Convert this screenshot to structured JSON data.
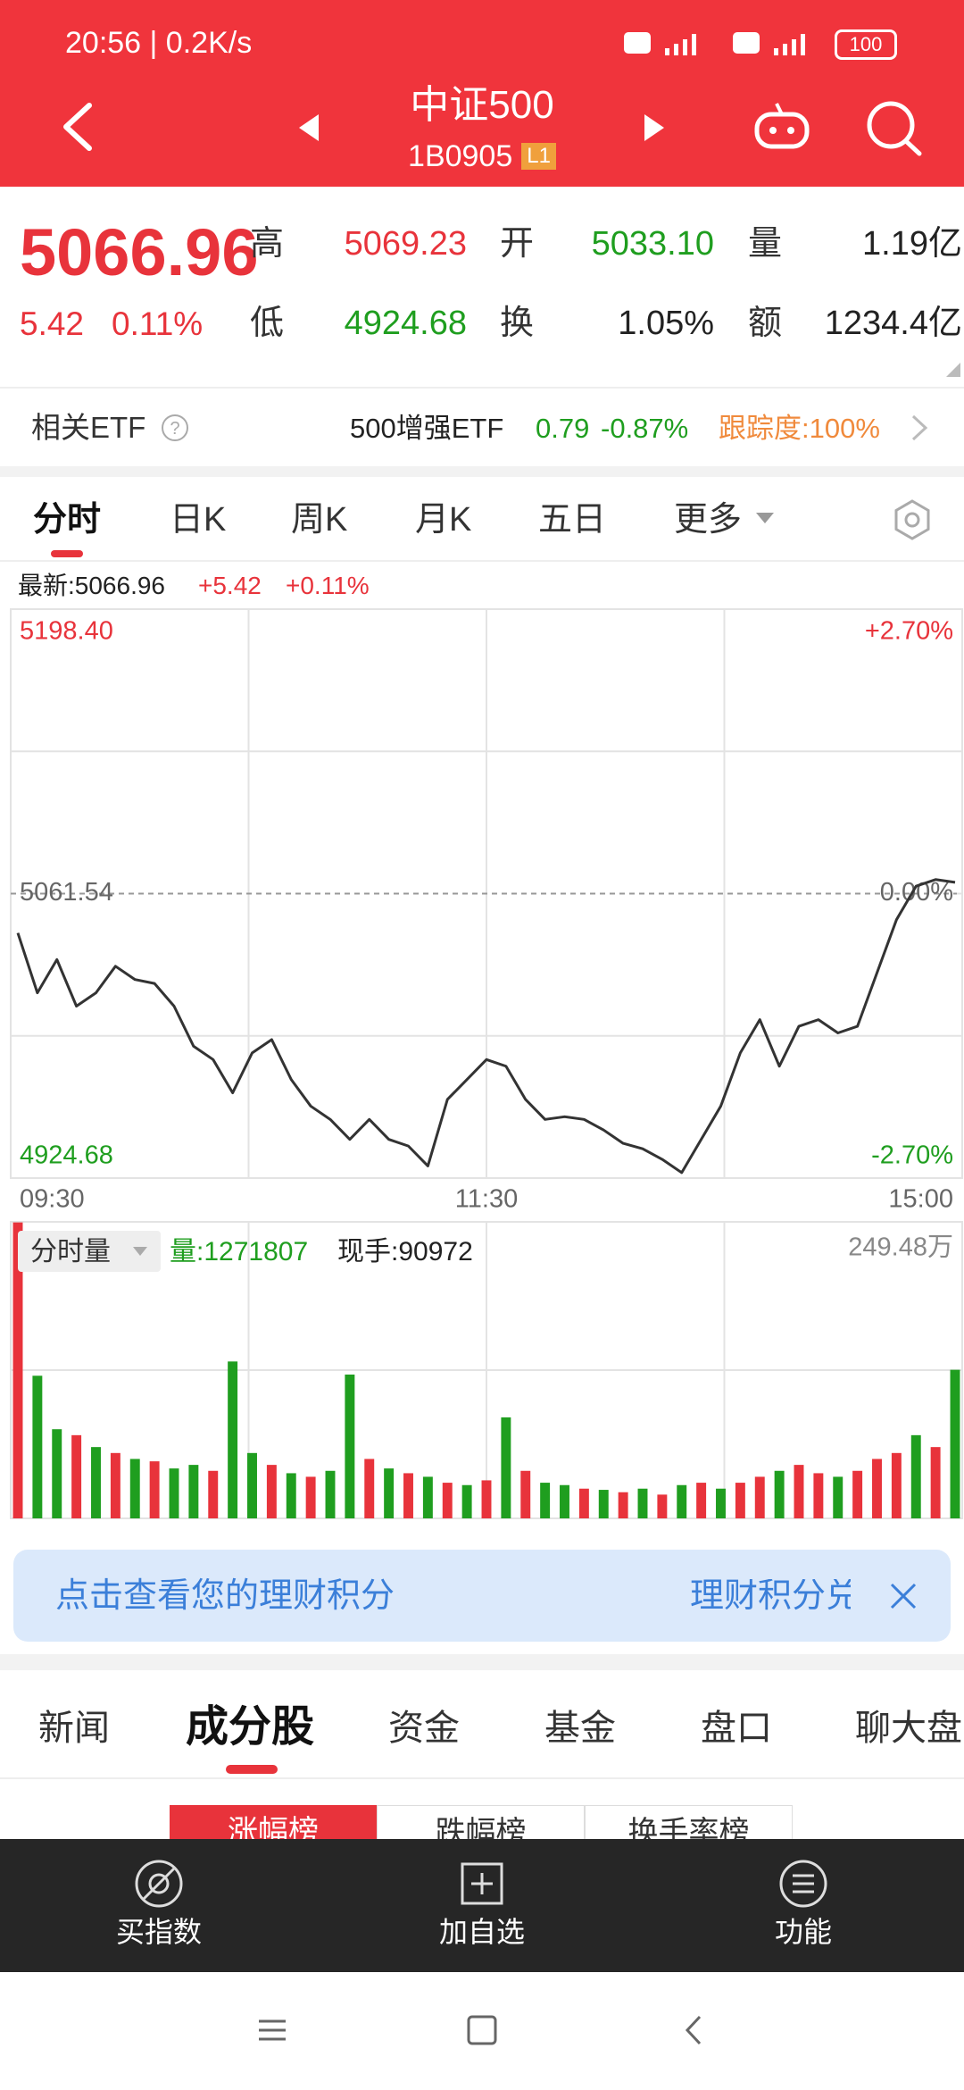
{
  "status_bar": {
    "time": "20:56 | 0.2K/s",
    "battery": "100"
  },
  "header": {
    "title": "中证500",
    "code": "1B0905",
    "level": "L1"
  },
  "quote": {
    "price": "5066.96",
    "change": "5.42",
    "change_pct": "0.11%",
    "stats": [
      {
        "label": "高",
        "value": "5069.23"
      },
      {
        "label": "开",
        "value": "5033.10"
      },
      {
        "label": "量",
        "value": "1.19亿"
      },
      {
        "label": "低",
        "value": "4924.68"
      },
      {
        "label": "换",
        "value": "1.05%"
      },
      {
        "label": "额",
        "value": "1234.4亿"
      }
    ]
  },
  "etf": {
    "label": "相关ETF",
    "name": "500增强ETF",
    "price": "0.79",
    "change_pct": "-0.87%",
    "tracking": "跟踪度:100%"
  },
  "chart_tabs": [
    "分时",
    "日K",
    "周K",
    "月K",
    "五日",
    "更多"
  ],
  "chart_info": {
    "latest": "最新:5066.96",
    "change": "+5.42",
    "change_pct": "+0.11%"
  },
  "volume_info": {
    "selector": "分时量",
    "volume": "量:1271807",
    "last_hand": "现手:90972"
  },
  "chart_data": [
    {
      "type": "line",
      "categories": [
        "09:30",
        null,
        null,
        null,
        null,
        null,
        null,
        null,
        null,
        null,
        null,
        null,
        null,
        null,
        null,
        null,
        null,
        null,
        null,
        null,
        null,
        null,
        null,
        null,
        "11:30",
        null,
        null,
        null,
        null,
        null,
        null,
        null,
        null,
        null,
        null,
        null,
        null,
        null,
        null,
        null,
        null,
        null,
        null,
        null,
        null,
        null,
        null,
        null,
        "15:00"
      ],
      "values": [
        5042.6,
        5013.8,
        5029.8,
        5007.4,
        5013.8,
        5026.6,
        5020.2,
        5018.3,
        5007.4,
        4988.1,
        4981.7,
        4965.7,
        4984.9,
        4991.3,
        4972.1,
        4959.3,
        4952.9,
        4943.3,
        4952.9,
        4943.3,
        4940.1,
        4930.5,
        4962.5,
        4972.1,
        4981.7,
        4978.5,
        4962.5,
        4952.9,
        4954.2,
        4952.9,
        4947.8,
        4941.4,
        4938.8,
        4933.7,
        4927.3,
        4943.3,
        4959.3,
        4984.9,
        5000.9,
        4978.5,
        4997.7,
        5000.9,
        4994.5,
        4997.7,
        5023.4,
        5049,
        5065.1,
        5068.3,
        5066.96
      ],
      "color": "#333333",
      "ylim": [
        4924.68,
        5198.4
      ],
      "yticks": [
        4924.68,
        5061.54,
        {
          "value": 5198.4,
          "label": "5198.40"
        }
      ],
      "y2lim": [
        -2.7,
        2.7
      ],
      "y2ticks": [
        {
          "value": -2.7,
          "label": "-2.70%"
        },
        {
          "value": 0,
          "label": "0.00%"
        },
        {
          "value": 2.7,
          "label": "+2.70%"
        }
      ],
      "grid": true
    },
    {
      "type": "bar",
      "categories": [
        "09:30",
        null,
        null,
        null,
        null,
        null,
        null,
        null,
        null,
        null,
        null,
        null,
        null,
        null,
        null,
        null,
        null,
        null,
        null,
        null,
        null,
        null,
        null,
        null,
        "11:30",
        null,
        null,
        null,
        null,
        null,
        null,
        null,
        null,
        null,
        null,
        null,
        null,
        null,
        null,
        null,
        null,
        null,
        null,
        null,
        null,
        null,
        null,
        null,
        "15:00"
      ],
      "values": [
        249,
        120,
        75,
        70,
        60,
        55,
        50,
        48,
        42,
        45,
        40,
        132,
        55,
        45,
        38,
        35,
        40,
        121,
        50,
        42,
        38,
        35,
        30,
        28,
        32,
        85,
        40,
        30,
        28,
        25,
        24,
        22,
        25,
        20,
        28,
        30,
        25,
        30,
        35,
        40,
        45,
        38,
        35,
        40,
        50,
        55,
        70,
        60,
        125
      ],
      "colors": [
        "#e8333b",
        "#1f9e1f",
        "#1f9e1f",
        "#e8333b",
        "#1f9e1f",
        "#e8333b",
        "#1f9e1f",
        "#e8333b",
        "#1f9e1f",
        "#1f9e1f",
        "#e8333b",
        "#1f9e1f",
        "#1f9e1f",
        "#e8333b",
        "#1f9e1f",
        "#e8333b",
        "#1f9e1f",
        "#1f9e1f",
        "#e8333b",
        "#1f9e1f",
        "#e8333b",
        "#1f9e1f",
        "#e8333b",
        "#1f9e1f",
        "#e8333b",
        "#1f9e1f",
        "#e8333b",
        "#1f9e1f",
        "#1f9e1f",
        "#e8333b",
        "#1f9e1f",
        "#e8333b",
        "#1f9e1f",
        "#e8333b",
        "#1f9e1f",
        "#e8333b",
        "#1f9e1f",
        "#e8333b",
        "#e8333b",
        "#1f9e1f",
        "#e8333b",
        "#e8333b",
        "#1f9e1f",
        "#e8333b",
        "#e8333b",
        "#e8333b",
        "#1f9e1f",
        "#e8333b",
        "#1f9e1f"
      ],
      "ylim": [
        0,
        249.48
      ],
      "yticks": [
        {
          "value": 249.48,
          "label": "249.48万"
        }
      ],
      "grid": true
    }
  ],
  "banner": {
    "text": "点击查看您的理财积分",
    "link": "理财积分兑"
  },
  "tabs": [
    "新闻",
    "成分股",
    "资金",
    "基金",
    "盘口",
    "聊大盘"
  ],
  "sub_tabs": [
    "涨幅榜",
    "跌幅榜",
    "换手率榜"
  ],
  "bottom_bar": [
    "买指数",
    "加自选",
    "功能"
  ]
}
